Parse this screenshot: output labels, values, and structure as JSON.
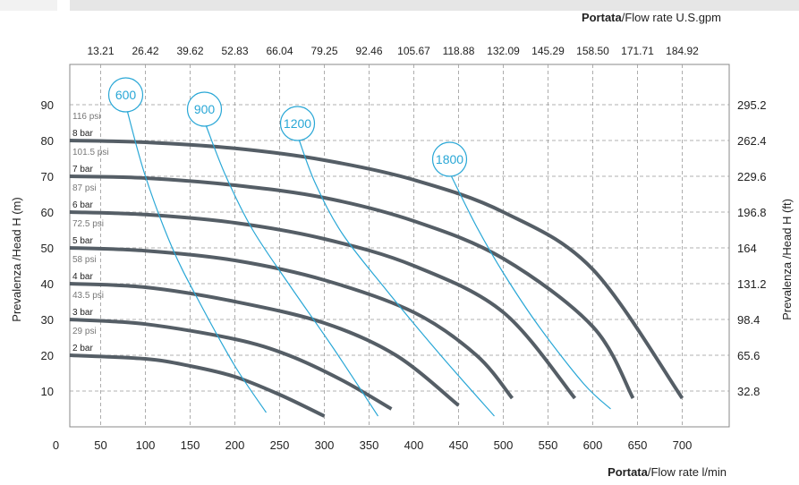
{
  "chart_data": {
    "type": "line",
    "top_axis_title": {
      "bold": "Portata",
      "rest": "/Flow rate U.S.gpm"
    },
    "bottom_axis_title": {
      "bold": "Portata",
      "rest": "/Flow rate  l/min"
    },
    "left_axis_title": "Prevalenza /Head H (m)",
    "right_axis_title": "Prevalenza /Head H (ft)",
    "x_ticks": [
      "0",
      "50",
      "100",
      "150",
      "200",
      "250",
      "300",
      "350",
      "400",
      "450",
      "500",
      "550",
      "600",
      "650",
      "700"
    ],
    "x_tick_values": [
      0,
      50,
      100,
      150,
      200,
      250,
      300,
      350,
      400,
      450,
      500,
      550,
      600,
      650,
      700
    ],
    "top_ticks": [
      "13.21",
      "26.42",
      "39.62",
      "52.83",
      "66.04",
      "79.25",
      "92.46",
      "105.67",
      "118.88",
      "132.09",
      "145.29",
      "158.50",
      "171.71",
      "184.92"
    ],
    "y_ticks": [
      "10",
      "20",
      "30",
      "40",
      "50",
      "60",
      "70",
      "80",
      "90"
    ],
    "y_tick_values": [
      10,
      20,
      30,
      40,
      50,
      60,
      70,
      80,
      90
    ],
    "right_ticks": [
      "32.8",
      "65.6",
      "98.4",
      "131.2",
      "164",
      "196.8",
      "229.6",
      "262.4",
      "295.2"
    ],
    "xlim": [
      0,
      780
    ],
    "ylim": [
      0,
      100
    ],
    "grid": true,
    "pressure_curves": [
      {
        "bar": "2 bar",
        "psi": "29 psi",
        "x": [
          0,
          100,
          150,
          200,
          250,
          300
        ],
        "y": [
          20,
          19,
          17,
          14,
          9,
          3
        ]
      },
      {
        "bar": "3 bar",
        "psi": "43.5 psi",
        "x": [
          0,
          100,
          200,
          260,
          320,
          375
        ],
        "y": [
          30,
          28.7,
          24.5,
          20,
          13,
          5
        ]
      },
      {
        "bar": "4 bar",
        "psi": "58 psi",
        "x": [
          0,
          100,
          200,
          300,
          380,
          450
        ],
        "y": [
          40,
          39,
          35,
          29,
          20,
          6
        ]
      },
      {
        "bar": "5 bar",
        "psi": "72.5 psi",
        "x": [
          0,
          100,
          200,
          300,
          400,
          470,
          510
        ],
        "y": [
          50,
          49.2,
          46.5,
          41,
          32,
          20,
          8
        ]
      },
      {
        "bar": "6 bar",
        "psi": "87 psi",
        "x": [
          0,
          100,
          200,
          300,
          400,
          500,
          580
        ],
        "y": [
          60,
          59.3,
          57,
          52.5,
          45,
          32,
          8
        ]
      },
      {
        "bar": "7 bar",
        "psi": "101.5 psi",
        "x": [
          0,
          100,
          200,
          300,
          400,
          500,
          600,
          645
        ],
        "y": [
          70,
          69.5,
          67.5,
          64,
          57.5,
          47,
          28,
          8
        ]
      },
      {
        "bar": "8 bar",
        "psi": "116 psi",
        "x": [
          0,
          100,
          200,
          300,
          400,
          500,
          600,
          700
        ],
        "y": [
          80,
          79.5,
          77.8,
          74.5,
          69,
          60,
          44,
          8
        ]
      }
    ],
    "speed_curves": [
      {
        "label": "600",
        "x": [
          80,
          100,
          130,
          160,
          200,
          235
        ],
        "y": [
          88,
          70,
          50,
          35,
          17,
          4
        ]
      },
      {
        "label": "900",
        "x": [
          168,
          190,
          220,
          260,
          310,
          360
        ],
        "y": [
          84,
          70,
          55,
          40,
          22,
          3
        ]
      },
      {
        "label": "1200",
        "x": [
          272,
          290,
          320,
          370,
          430,
          490
        ],
        "y": [
          80,
          68,
          54,
          38,
          20,
          3
        ]
      },
      {
        "label": "1800",
        "x": [
          442,
          470,
          500,
          540,
          590,
          620
        ],
        "y": [
          70,
          56,
          43,
          28,
          12,
          5
        ]
      }
    ],
    "colors": {
      "pressure": "#555e66",
      "speed": "#29a7d6",
      "grid": "#999999",
      "axis": "#888888"
    }
  }
}
